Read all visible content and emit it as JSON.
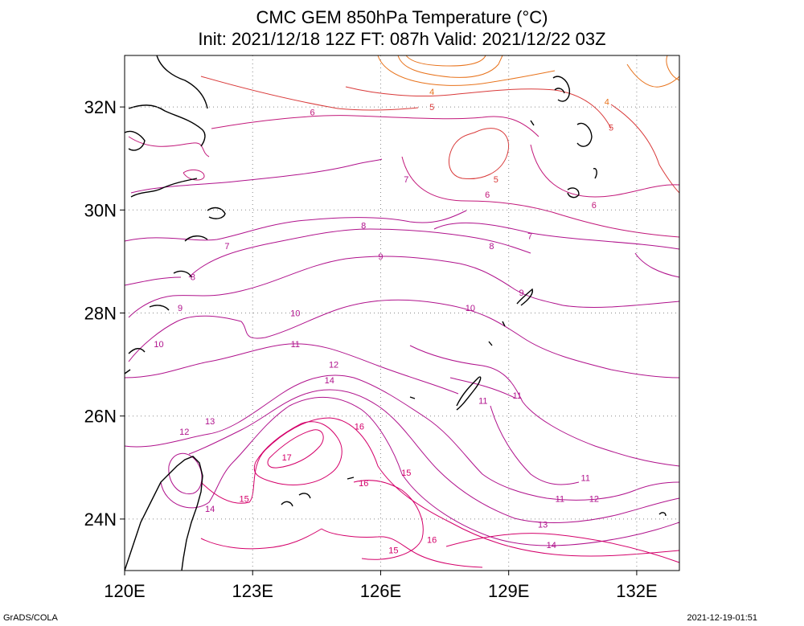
{
  "chart_data": {
    "type": "contour",
    "title": "CMC GEM 850hPa Temperature (°C)",
    "subtitle": "Init: 2021/12/18 12Z  FT: 087h  Valid: 2021/12/22 03Z",
    "x_axis": {
      "range": [
        120,
        133
      ],
      "ticks": [
        120,
        123,
        126,
        129,
        132
      ],
      "tick_labels": [
        "120E",
        "123E",
        "126E",
        "129E",
        "132E"
      ]
    },
    "y_axis": {
      "range": [
        23,
        33
      ],
      "ticks": [
        24,
        26,
        28,
        30,
        32
      ],
      "tick_labels": [
        "24N",
        "26N",
        "28N",
        "30N",
        "32N"
      ]
    },
    "grid": "dotted",
    "contour_interval": 1,
    "contour_labels": [
      {
        "value": 4,
        "lon": 127.2,
        "lat": 32.3
      },
      {
        "value": 4,
        "lon": 131.3,
        "lat": 32.1
      },
      {
        "value": 5,
        "lon": 127.2,
        "lat": 32.0
      },
      {
        "value": 5,
        "lon": 131.4,
        "lat": 31.6
      },
      {
        "value": 5,
        "lon": 128.7,
        "lat": 30.6
      },
      {
        "value": 6,
        "lon": 124.4,
        "lat": 31.9
      },
      {
        "value": 6,
        "lon": 128.5,
        "lat": 30.3
      },
      {
        "value": 6,
        "lon": 131.0,
        "lat": 30.1
      },
      {
        "value": 7,
        "lon": 126.6,
        "lat": 30.6
      },
      {
        "value": 7,
        "lon": 122.4,
        "lat": 29.3
      },
      {
        "value": 7,
        "lon": 129.5,
        "lat": 29.5
      },
      {
        "value": 8,
        "lon": 125.6,
        "lat": 29.7
      },
      {
        "value": 8,
        "lon": 128.6,
        "lat": 29.3
      },
      {
        "value": 8,
        "lon": 121.6,
        "lat": 28.7
      },
      {
        "value": 9,
        "lon": 126.0,
        "lat": 29.1
      },
      {
        "value": 9,
        "lon": 121.3,
        "lat": 28.1
      },
      {
        "value": 9,
        "lon": 129.3,
        "lat": 28.4
      },
      {
        "value": 10,
        "lon": 124.0,
        "lat": 28.0
      },
      {
        "value": 10,
        "lon": 128.1,
        "lat": 28.1
      },
      {
        "value": 10,
        "lon": 120.8,
        "lat": 27.4
      },
      {
        "value": 11,
        "lon": 124.0,
        "lat": 27.4
      },
      {
        "value": 11,
        "lon": 128.4,
        "lat": 26.3
      },
      {
        "value": 11,
        "lon": 129.2,
        "lat": 26.4
      },
      {
        "value": 11,
        "lon": 130.8,
        "lat": 24.8
      },
      {
        "value": 11,
        "lon": 130.2,
        "lat": 24.4
      },
      {
        "value": 12,
        "lon": 124.9,
        "lat": 27.0
      },
      {
        "value": 12,
        "lon": 121.4,
        "lat": 25.7
      },
      {
        "value": 12,
        "lon": 131.0,
        "lat": 24.4
      },
      {
        "value": 13,
        "lon": 122.0,
        "lat": 25.9
      },
      {
        "value": 13,
        "lon": 129.8,
        "lat": 23.9
      },
      {
        "value": 14,
        "lon": 124.8,
        "lat": 26.7
      },
      {
        "value": 14,
        "lon": 122.0,
        "lat": 24.2
      },
      {
        "value": 14,
        "lon": 130.0,
        "lat": 23.5
      },
      {
        "value": 15,
        "lon": 122.8,
        "lat": 24.4
      },
      {
        "value": 15,
        "lon": 126.6,
        "lat": 24.9
      },
      {
        "value": 15,
        "lon": 126.3,
        "lat": 23.4
      },
      {
        "value": 16,
        "lon": 125.5,
        "lat": 25.8
      },
      {
        "value": 16,
        "lon": 125.6,
        "lat": 24.7
      },
      {
        "value": 16,
        "lon": 127.2,
        "lat": 23.6
      },
      {
        "value": 17,
        "lon": 123.8,
        "lat": 25.2
      }
    ]
  },
  "footer": {
    "left": "GrADS/COLA",
    "right": "2021-12-19-01:51"
  }
}
